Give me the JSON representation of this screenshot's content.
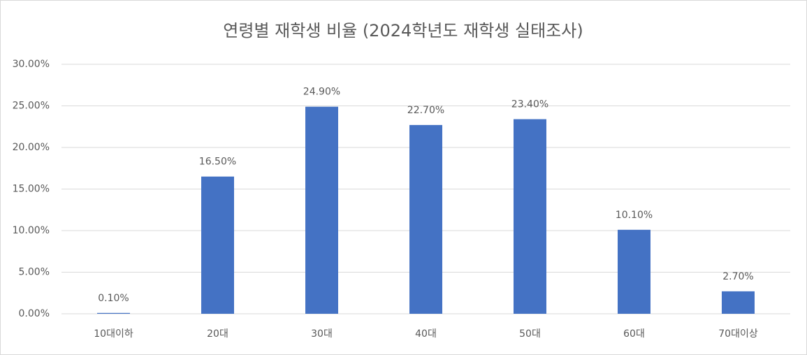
{
  "chart_data": {
    "type": "bar",
    "title": "연령별 재학생 비율 (2024학년도 재학생 실태조사)",
    "categories": [
      "10대이하",
      "20대",
      "30대",
      "40대",
      "50대",
      "60대",
      "70대이상"
    ],
    "values": [
      0.1,
      16.5,
      24.9,
      22.7,
      23.4,
      10.1,
      2.7
    ],
    "value_labels": [
      "0.10%",
      "16.50%",
      "24.90%",
      "22.70%",
      "23.40%",
      "10.10%",
      "2.70%"
    ],
    "color": "#4472c4",
    "ylim": [
      0,
      30
    ],
    "yticks": [
      {
        "value": 0,
        "label": "0.00%"
      },
      {
        "value": 5,
        "label": "5.00%"
      },
      {
        "value": 10,
        "label": "10.00%"
      },
      {
        "value": 15,
        "label": "15.00%"
      },
      {
        "value": 20,
        "label": "20.00%"
      },
      {
        "value": 25,
        "label": "25.00%"
      },
      {
        "value": 30,
        "label": "30.00%"
      }
    ],
    "grid": true
  }
}
